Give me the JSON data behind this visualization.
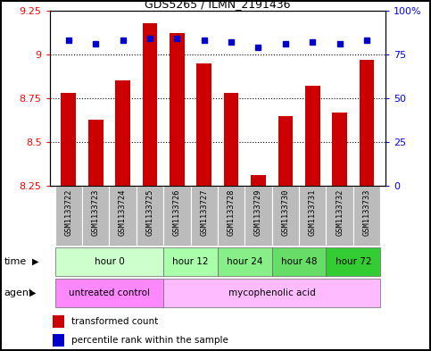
{
  "title": "GDS5265 / ILMN_2191436",
  "samples": [
    "GSM1133722",
    "GSM1133723",
    "GSM1133724",
    "GSM1133725",
    "GSM1133726",
    "GSM1133727",
    "GSM1133728",
    "GSM1133729",
    "GSM1133730",
    "GSM1133731",
    "GSM1133732",
    "GSM1133733"
  ],
  "bar_values": [
    8.78,
    8.63,
    8.85,
    9.18,
    9.12,
    8.95,
    8.78,
    8.31,
    8.65,
    8.82,
    8.67,
    8.97
  ],
  "percentile_values": [
    83,
    81,
    83,
    84,
    84,
    83,
    82,
    79,
    81,
    82,
    81,
    83
  ],
  "bar_color": "#cc0000",
  "dot_color": "#0000cc",
  "ylim_left": [
    8.25,
    9.25
  ],
  "ylim_right": [
    0,
    100
  ],
  "yticks_left": [
    8.25,
    8.5,
    8.75,
    9.0,
    9.25
  ],
  "yticks_right": [
    0,
    25,
    50,
    75,
    100
  ],
  "ytick_labels_left": [
    "8.25",
    "8.5",
    "8.75",
    "9",
    "9.25"
  ],
  "ytick_labels_right": [
    "0",
    "25",
    "50",
    "75",
    "100%"
  ],
  "time_groups": [
    {
      "label": "hour 0",
      "start": 0,
      "end": 3,
      "color": "#ccffcc"
    },
    {
      "label": "hour 12",
      "start": 4,
      "end": 5,
      "color": "#aaffaa"
    },
    {
      "label": "hour 24",
      "start": 6,
      "end": 7,
      "color": "#88ee88"
    },
    {
      "label": "hour 48",
      "start": 8,
      "end": 9,
      "color": "#66dd66"
    },
    {
      "label": "hour 72",
      "start": 10,
      "end": 11,
      "color": "#33cc33"
    }
  ],
  "agent_groups": [
    {
      "label": "untreated control",
      "start": 0,
      "end": 3,
      "color": "#ff88ff"
    },
    {
      "label": "mycophenolic acid",
      "start": 4,
      "end": 11,
      "color": "#ffbbff"
    }
  ],
  "legend_bar_label": "transformed count",
  "legend_dot_label": "percentile rank within the sample",
  "background_color": "#ffffff",
  "sample_bg_color": "#bbbbbb",
  "fig_width": 4.83,
  "fig_height": 3.93,
  "dpi": 100
}
